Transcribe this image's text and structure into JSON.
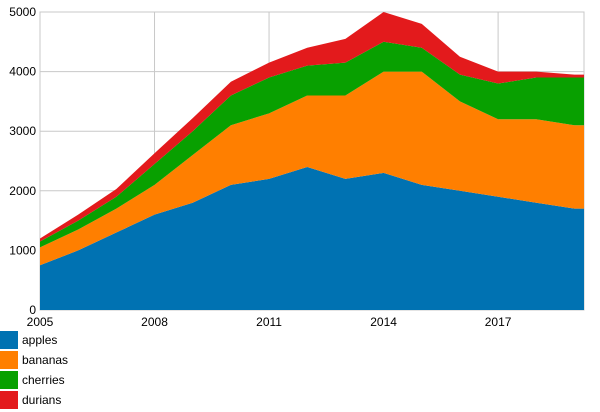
{
  "chart_data": {
    "type": "area",
    "stacked": true,
    "x": [
      2005,
      2006,
      2007,
      2008,
      2009,
      2010,
      2011,
      2012,
      2013,
      2014,
      2015,
      2016,
      2017,
      2018,
      2019
    ],
    "xlim": [
      2005,
      2019.25
    ],
    "ylim": [
      0,
      5000
    ],
    "x_ticks": [
      "2005",
      "2008",
      "2011",
      "2014",
      "2017"
    ],
    "y_ticks": [
      "0",
      "1000",
      "2000",
      "3000",
      "4000",
      "5000"
    ],
    "grid": true,
    "legend_position": "bottom-left",
    "series": [
      {
        "name": "apples",
        "color": "#0072b2",
        "values": [
          750,
          1000,
          1300,
          1600,
          1800,
          2100,
          2200,
          2400,
          2200,
          2300,
          2100,
          2000,
          1900,
          1800,
          1700
        ]
      },
      {
        "name": "bananas",
        "color": "#ff7f00",
        "values": [
          300,
          350,
          400,
          500,
          800,
          1000,
          1100,
          1200,
          1400,
          1700,
          1900,
          1500,
          1300,
          1400,
          1400
        ]
      },
      {
        "name": "cherries",
        "color": "#08a000",
        "values": [
          100,
          150,
          200,
          350,
          400,
          500,
          600,
          500,
          550,
          500,
          400,
          450,
          600,
          700,
          800
        ]
      },
      {
        "name": "durians",
        "color": "#e31a1c",
        "values": [
          50,
          100,
          130,
          180,
          220,
          230,
          250,
          300,
          400,
          500,
          400,
          300,
          200,
          100,
          50
        ]
      }
    ]
  }
}
